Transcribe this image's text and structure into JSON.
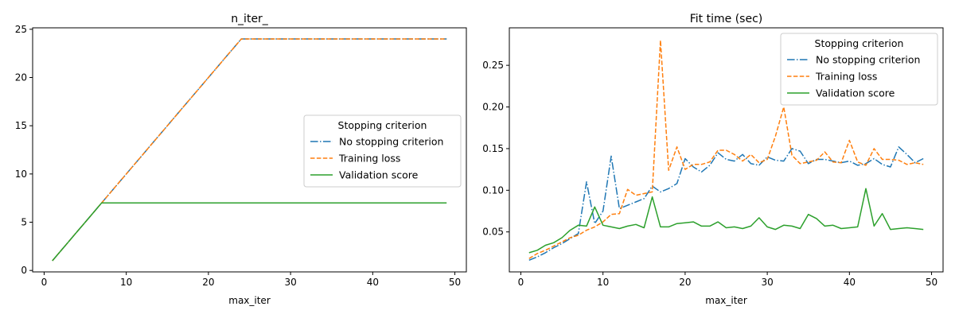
{
  "chart_data": [
    {
      "type": "line",
      "title": "n_iter_",
      "xlabel": "max_iter",
      "ylabel": "",
      "xlim": [
        -1.4,
        51.4
      ],
      "ylim": [
        -0.15,
        25.15
      ],
      "xticks": [
        0,
        10,
        20,
        30,
        40,
        50
      ],
      "xtick_labels": [
        "0",
        "10",
        "20",
        "30",
        "40",
        "50"
      ],
      "yticks": [
        0,
        5,
        10,
        15,
        20,
        25
      ],
      "ytick_labels": [
        "0",
        "5",
        "10",
        "15",
        "20",
        "25"
      ],
      "legend": {
        "title": "Stopping criterion",
        "placement": "center-right",
        "entries": [
          "No stopping criterion",
          "Training loss",
          "Validation score"
        ]
      },
      "x": [
        1,
        2,
        3,
        4,
        5,
        6,
        7,
        8,
        9,
        10,
        11,
        12,
        13,
        14,
        15,
        16,
        17,
        18,
        19,
        20,
        21,
        22,
        23,
        24,
        25,
        26,
        27,
        28,
        29,
        30,
        31,
        32,
        33,
        34,
        35,
        36,
        37,
        38,
        39,
        40,
        41,
        42,
        43,
        44,
        45,
        46,
        47,
        48,
        49
      ],
      "series": [
        {
          "name": "No stopping criterion",
          "color": "#1f77b4",
          "dash": "dashdot",
          "values": [
            1,
            2,
            3,
            4,
            5,
            6,
            7,
            8,
            9,
            10,
            11,
            12,
            13,
            14,
            15,
            16,
            17,
            18,
            19,
            20,
            21,
            22,
            23,
            24,
            24,
            24,
            24,
            24,
            24,
            24,
            24,
            24,
            24,
            24,
            24,
            24,
            24,
            24,
            24,
            24,
            24,
            24,
            24,
            24,
            24,
            24,
            24,
            24,
            24
          ]
        },
        {
          "name": "Training loss",
          "color": "#ff7f0e",
          "dash": "dashed",
          "values": [
            1,
            2,
            3,
            4,
            5,
            6,
            7,
            8,
            9,
            10,
            11,
            12,
            13,
            14,
            15,
            16,
            17,
            18,
            19,
            20,
            21,
            22,
            23,
            24,
            24,
            24,
            24,
            24,
            24,
            24,
            24,
            24,
            24,
            24,
            24,
            24,
            24,
            24,
            24,
            24,
            24,
            24,
            24,
            24,
            24,
            24,
            24,
            24,
            24
          ]
        },
        {
          "name": "Validation score",
          "color": "#2ca02c",
          "dash": "solid",
          "values": [
            1,
            2,
            3,
            4,
            5,
            6,
            7,
            7,
            7,
            7,
            7,
            7,
            7,
            7,
            7,
            7,
            7,
            7,
            7,
            7,
            7,
            7,
            7,
            7,
            7,
            7,
            7,
            7,
            7,
            7,
            7,
            7,
            7,
            7,
            7,
            7,
            7,
            7,
            7,
            7,
            7,
            7,
            7,
            7,
            7,
            7,
            7,
            7,
            7
          ]
        }
      ]
    },
    {
      "type": "line",
      "title": "Fit time (sec)",
      "xlabel": "max_iter",
      "ylabel": "",
      "xlim": [
        -1.4,
        51.4
      ],
      "ylim": [
        0.002,
        0.295
      ],
      "xticks": [
        0,
        10,
        20,
        30,
        40,
        50
      ],
      "xtick_labels": [
        "0",
        "10",
        "20",
        "30",
        "40",
        "50"
      ],
      "yticks": [
        0.05,
        0.1,
        0.15,
        0.2,
        0.25
      ],
      "ytick_labels": [
        "0.05",
        "0.10",
        "0.15",
        "0.20",
        "0.25"
      ],
      "legend": {
        "title": "Stopping criterion",
        "placement": "top-right",
        "entries": [
          "No stopping criterion",
          "Training loss",
          "Validation score"
        ]
      },
      "x": [
        1,
        2,
        3,
        4,
        5,
        6,
        7,
        8,
        9,
        10,
        11,
        12,
        13,
        14,
        15,
        16,
        17,
        18,
        19,
        20,
        21,
        22,
        23,
        24,
        25,
        26,
        27,
        28,
        29,
        30,
        31,
        32,
        33,
        34,
        35,
        36,
        37,
        38,
        39,
        40,
        41,
        42,
        43,
        44,
        45,
        46,
        47,
        48,
        49
      ],
      "series": [
        {
          "name": "No stopping criterion",
          "color": "#1f77b4",
          "dash": "dashdot",
          "values": [
            0.016,
            0.02,
            0.025,
            0.031,
            0.036,
            0.042,
            0.048,
            0.11,
            0.06,
            0.075,
            0.141,
            0.078,
            0.082,
            0.086,
            0.09,
            0.105,
            0.098,
            0.102,
            0.108,
            0.138,
            0.128,
            0.122,
            0.13,
            0.145,
            0.137,
            0.135,
            0.143,
            0.132,
            0.13,
            0.14,
            0.136,
            0.135,
            0.15,
            0.147,
            0.132,
            0.137,
            0.137,
            0.135,
            0.133,
            0.135,
            0.13,
            0.132,
            0.138,
            0.131,
            0.128,
            0.152,
            0.143,
            0.133,
            0.138
          ]
        },
        {
          "name": "Training loss",
          "color": "#ff7f0e",
          "dash": "dashed",
          "values": [
            0.018,
            0.024,
            0.028,
            0.033,
            0.038,
            0.043,
            0.046,
            0.052,
            0.056,
            0.062,
            0.071,
            0.072,
            0.101,
            0.094,
            0.096,
            0.098,
            0.28,
            0.124,
            0.152,
            0.125,
            0.131,
            0.131,
            0.134,
            0.148,
            0.148,
            0.143,
            0.135,
            0.143,
            0.133,
            0.137,
            0.165,
            0.2,
            0.142,
            0.132,
            0.134,
            0.136,
            0.146,
            0.134,
            0.133,
            0.16,
            0.134,
            0.13,
            0.15,
            0.137,
            0.137,
            0.136,
            0.131,
            0.133,
            0.131
          ]
        },
        {
          "name": "Validation score",
          "color": "#2ca02c",
          "dash": "solid",
          "values": [
            0.025,
            0.028,
            0.034,
            0.037,
            0.043,
            0.052,
            0.058,
            0.057,
            0.08,
            0.058,
            0.056,
            0.054,
            0.057,
            0.059,
            0.055,
            0.092,
            0.056,
            0.056,
            0.06,
            0.061,
            0.062,
            0.057,
            0.057,
            0.062,
            0.055,
            0.056,
            0.054,
            0.057,
            0.067,
            0.056,
            0.053,
            0.058,
            0.057,
            0.054,
            0.071,
            0.066,
            0.057,
            0.058,
            0.054,
            0.055,
            0.056,
            0.102,
            0.057,
            0.072,
            0.053,
            0.054,
            0.055,
            0.054,
            0.053
          ]
        }
      ]
    }
  ]
}
